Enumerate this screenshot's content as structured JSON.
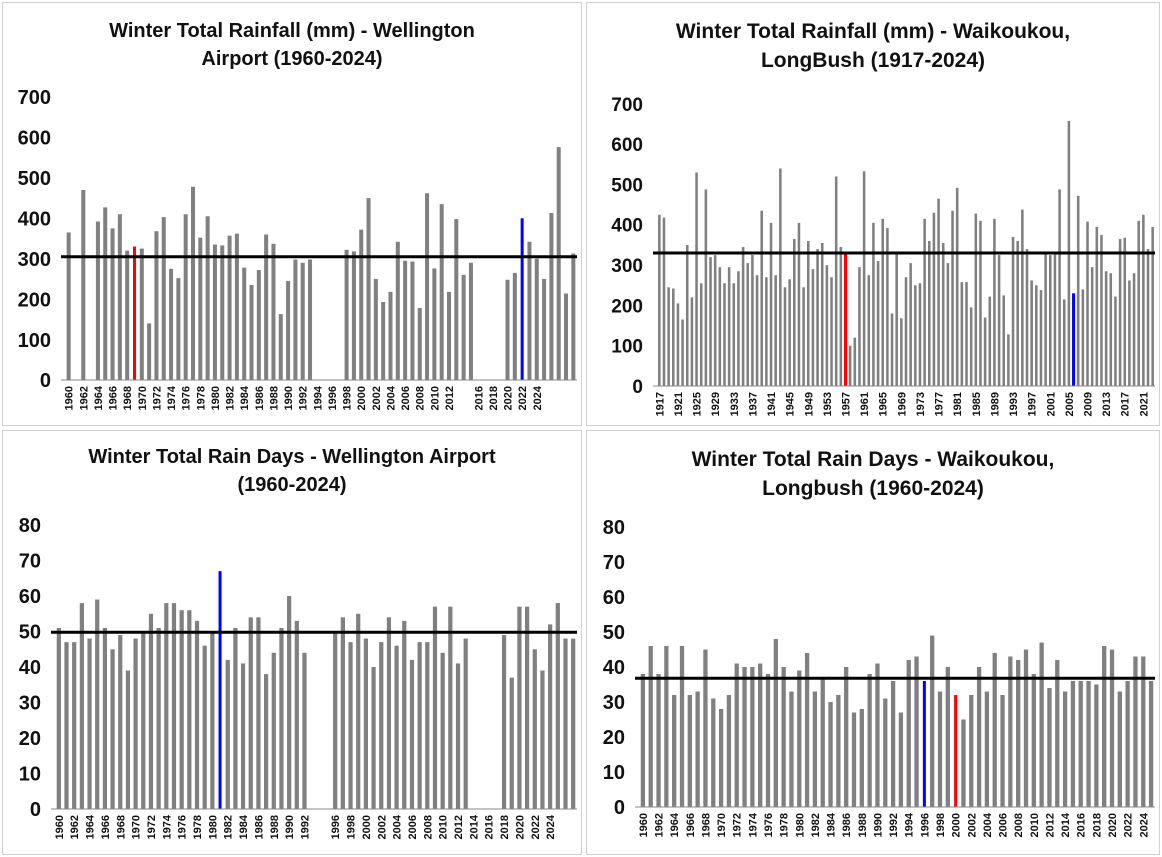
{
  "chart_data": [
    {
      "type": "bar",
      "title": "Winter Total Rainfall (mm) - Wellington\nAirport (1960-2024)",
      "ylim": [
        0,
        700
      ],
      "yticks": [
        0,
        100,
        200,
        300,
        400,
        500,
        600,
        700
      ],
      "xstart": 1960,
      "values": [
        365,
        null,
        470,
        null,
        392,
        427,
        375,
        410,
        320,
        330,
        325,
        140,
        368,
        403,
        275,
        252,
        410,
        478,
        352,
        405,
        335,
        333,
        357,
        362,
        278,
        235,
        272,
        360,
        337,
        163,
        245,
        298,
        290,
        298,
        null,
        null,
        null,
        null,
        322,
        318,
        372,
        450,
        250,
        193,
        218,
        342,
        295,
        293,
        178,
        462,
        276,
        435,
        218,
        398,
        260,
        290,
        null,
        null,
        null,
        null,
        248,
        265,
        400,
        342,
        300,
        250,
        413,
        576,
        214,
        313
      ],
      "xticks": [
        "1960",
        "1962",
        "1964",
        "1966",
        "1968",
        "1970",
        "1972",
        "1974",
        "1976",
        "1978",
        "1980",
        "1982",
        "1984",
        "1986",
        "1988",
        "1990",
        "1992",
        "1994",
        "1996",
        "1998",
        "2000",
        "2002",
        "2004",
        "2006",
        "2008",
        "2010",
        "2012",
        "2016",
        "2018",
        "2020",
        "2022",
        "2024"
      ],
      "average": 305,
      "highlight_min": {
        "year": "1969",
        "value": 140,
        "color": "#ff0000"
      },
      "highlight_max": {
        "year": "2022",
        "value": 576,
        "color": "#0000ff"
      },
      "bar_color": "#808080",
      "average_line_color": "#000000",
      "grid": false
    },
    {
      "type": "bar",
      "title": "Winter Total Rainfall (mm) - Waikoukou,\nLongBush (1917-2024)",
      "ylim": [
        0,
        700
      ],
      "yticks": [
        0,
        100,
        200,
        300,
        400,
        500,
        600,
        700
      ],
      "xstart": 1917,
      "values": [
        425,
        418,
        245,
        242,
        205,
        165,
        350,
        220,
        530,
        255,
        488,
        320,
        325,
        295,
        255,
        295,
        255,
        285,
        345,
        305,
        325,
        275,
        435,
        270,
        405,
        275,
        540,
        245,
        265,
        365,
        405,
        245,
        360,
        290,
        340,
        355,
        300,
        270,
        520,
        345,
        330,
        100,
        120,
        295,
        533,
        275,
        405,
        310,
        415,
        392,
        180,
        330,
        168,
        270,
        305,
        250,
        255,
        415,
        360,
        430,
        465,
        355,
        305,
        435,
        492,
        258,
        258,
        195,
        428,
        410,
        170,
        222,
        415,
        325,
        225,
        128,
        370,
        360,
        438,
        340,
        262,
        250,
        238,
        330,
        325,
        330,
        488,
        215,
        658,
        230,
        472,
        240,
        408,
        295,
        395,
        375,
        285,
        280,
        222,
        365,
        368,
        262,
        280,
        410,
        425,
        340,
        395
      ],
      "xticks": [
        "1917",
        "1921",
        "1925",
        "1929",
        "1933",
        "1937",
        "1941",
        "1945",
        "1949",
        "1953",
        "1957",
        "1961",
        "1965",
        "1969",
        "1973",
        "1977",
        "1981",
        "1985",
        "1989",
        "1993",
        "1997",
        "2001",
        "2005",
        "2009",
        "2013",
        "2017",
        "2021"
      ],
      "average": 330,
      "highlight_min": {
        "year": "1957",
        "value": 100,
        "color": "#ff0000"
      },
      "highlight_max": {
        "year": "2006",
        "value": 658,
        "color": "#0000ff"
      },
      "bar_color": "#808080",
      "average_line_color": "#000000",
      "grid": false
    },
    {
      "type": "bar",
      "title": "Winter Total Rain Days - Wellington Airport\n(1960-2024)",
      "ylim": [
        0,
        80
      ],
      "yticks": [
        0,
        10,
        20,
        30,
        40,
        50,
        60,
        70,
        80
      ],
      "xstart": 1960,
      "values": [
        51,
        47,
        47,
        58,
        48,
        59,
        51,
        45,
        49,
        39,
        48,
        50,
        55,
        51,
        58,
        58,
        56,
        56,
        53,
        46,
        50,
        67,
        42,
        51,
        41,
        54,
        54,
        38,
        44,
        51,
        60,
        53,
        44,
        null,
        null,
        null,
        50,
        54,
        47,
        55,
        48,
        40,
        47,
        54,
        46,
        53,
        42,
        47,
        47,
        57,
        44,
        57,
        41,
        48,
        null,
        null,
        null,
        null,
        49,
        37,
        57,
        57,
        45,
        39,
        52,
        58,
        48,
        48
      ],
      "xticks": [
        "1960",
        "1962",
        "1964",
        "1966",
        "1968",
        "1970",
        "1972",
        "1974",
        "1976",
        "1978",
        "1980",
        "1982",
        "1984",
        "1986",
        "1988",
        "1990",
        "1992",
        "1996",
        "1998",
        "2000",
        "2002",
        "2004",
        "2006",
        "2008",
        "2010",
        "2012",
        "2014",
        "2016",
        "2018",
        "2020",
        "2022",
        "2024"
      ],
      "average": 49.8,
      "highlight_min": {
        "year": "2016",
        "value": 37,
        "color": "#ff0000"
      },
      "highlight_max": {
        "year": "1981",
        "value": 67,
        "color": "#0000ff"
      },
      "bar_color": "#808080",
      "average_line_color": "#000000",
      "grid": false
    },
    {
      "type": "bar",
      "title": "Winter Total Rain Days - Waikoukou,\nLongbush (1960-2024)",
      "ylim": [
        0,
        80
      ],
      "yticks": [
        0,
        10,
        20,
        30,
        40,
        50,
        60,
        70,
        80
      ],
      "xstart": 1960,
      "values": [
        38,
        46,
        38,
        46,
        32,
        46,
        32,
        33,
        45,
        31,
        28,
        32,
        41,
        40,
        40,
        41,
        38,
        48,
        40,
        33,
        39,
        44,
        33,
        37,
        30,
        32,
        40,
        27,
        28,
        38,
        41,
        31,
        36,
        27,
        42,
        43,
        36,
        49,
        33,
        40,
        32,
        25,
        32,
        40,
        33,
        44,
        32,
        43,
        42,
        45,
        38,
        47,
        34,
        42,
        33,
        36,
        36,
        36,
        35,
        46,
        45,
        33,
        36,
        43,
        43,
        36
      ],
      "xticks": [
        "1960",
        "1962",
        "1964",
        "1966",
        "1968",
        "1970",
        "1972",
        "1974",
        "1976",
        "1978",
        "1980",
        "1982",
        "1984",
        "1986",
        "1988",
        "1990",
        "1992",
        "1994",
        "1996",
        "1998",
        "2000",
        "2002",
        "2004",
        "2006",
        "2008",
        "2010",
        "2012",
        "2014",
        "2016",
        "2018",
        "2020",
        "2022",
        "2024"
      ],
      "average": 36.8,
      "highlight_min": {
        "year": "2000",
        "value": 25,
        "color": "#ff0000"
      },
      "highlight_max": {
        "year": "1996",
        "value": 49,
        "color": "#0000ff"
      },
      "bar_color": "#808080",
      "average_line_color": "#000000",
      "grid": false
    }
  ]
}
